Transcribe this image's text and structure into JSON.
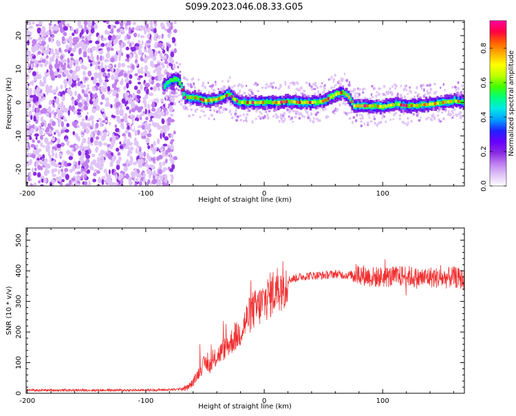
{
  "figure_title": "S099.2023.046.08.33.G05",
  "chart_data": [
    {
      "type": "heatmap",
      "xlabel": "Height of straight line (km)",
      "ylabel": "Frequency (Hz)",
      "xlim": [
        -201,
        169
      ],
      "ylim": [
        -25,
        24.5
      ],
      "xticks": [
        -200,
        -100,
        0,
        100
      ],
      "yticks": [
        -20,
        -10,
        0,
        10,
        20
      ],
      "colorbar": {
        "label": "Normalized spectral amplitude",
        "range": [
          0.0,
          0.96
        ],
        "ticks": [
          "0.0",
          "0.2",
          "0.4",
          "0.6",
          "0.8"
        ],
        "tick_values": [
          0.0,
          0.2,
          0.4,
          0.6,
          0.8
        ],
        "colors": [
          "#ffffff",
          "#e0c4f8",
          "#c080f0",
          "#8a2be2",
          "#6a00ff",
          "#2020ff",
          "#00a0ff",
          "#00e8e8",
          "#00ff80",
          "#40ff00",
          "#c0ff00",
          "#ffff00",
          "#ffb000",
          "#ff6000",
          "#ff0040",
          "#ff00a0"
        ]
      },
      "ridge": {
        "x": [
          -85,
          -80,
          -75,
          -72,
          -68,
          -60,
          -50,
          -40,
          -30,
          -25,
          -20,
          -10,
          0,
          10,
          20,
          30,
          40,
          50,
          55,
          60,
          65,
          70,
          75,
          80,
          90,
          100,
          110,
          120,
          130,
          140,
          150,
          160,
          169
        ],
        "y": [
          5,
          6.5,
          7,
          6,
          1.5,
          1.5,
          0.5,
          1,
          2.5,
          0.5,
          0,
          0,
          0,
          0,
          0.3,
          0,
          0,
          0.5,
          1.5,
          2.5,
          3,
          2,
          -1,
          -1,
          -1,
          -1.2,
          -0.5,
          -1,
          -0.8,
          -0.5,
          0,
          0.5,
          0
        ]
      },
      "noise_region_x": [
        -201,
        -75
      ]
    },
    {
      "type": "line",
      "xlabel": "Height of straight line (km)",
      "ylabel": "SNR (10 * v/v)",
      "xlim": [
        -201,
        169
      ],
      "ylim": [
        0,
        540
      ],
      "xticks": [
        -200,
        -100,
        0,
        100
      ],
      "yticks": [
        0,
        100,
        200,
        300,
        400,
        500
      ],
      "color": "#f03030",
      "series": [
        {
          "x": [
            -201,
            -100,
            -75,
            -65,
            -60,
            -55,
            -50,
            -45,
            -40,
            -35,
            -30,
            -25,
            -20,
            -15,
            -10,
            -5,
            0,
            10,
            20,
            30,
            40,
            50,
            60,
            70,
            80,
            90,
            100,
            110,
            120,
            130,
            140,
            150,
            160,
            169
          ],
          "values": [
            10,
            10,
            12,
            18,
            35,
            70,
            100,
            90,
            120,
            140,
            160,
            180,
            200,
            240,
            270,
            280,
            300,
            340,
            370,
            380,
            385,
            385,
            390,
            385,
            390,
            380,
            380,
            380,
            385,
            375,
            380,
            375,
            380,
            370
          ]
        }
      ]
    }
  ]
}
